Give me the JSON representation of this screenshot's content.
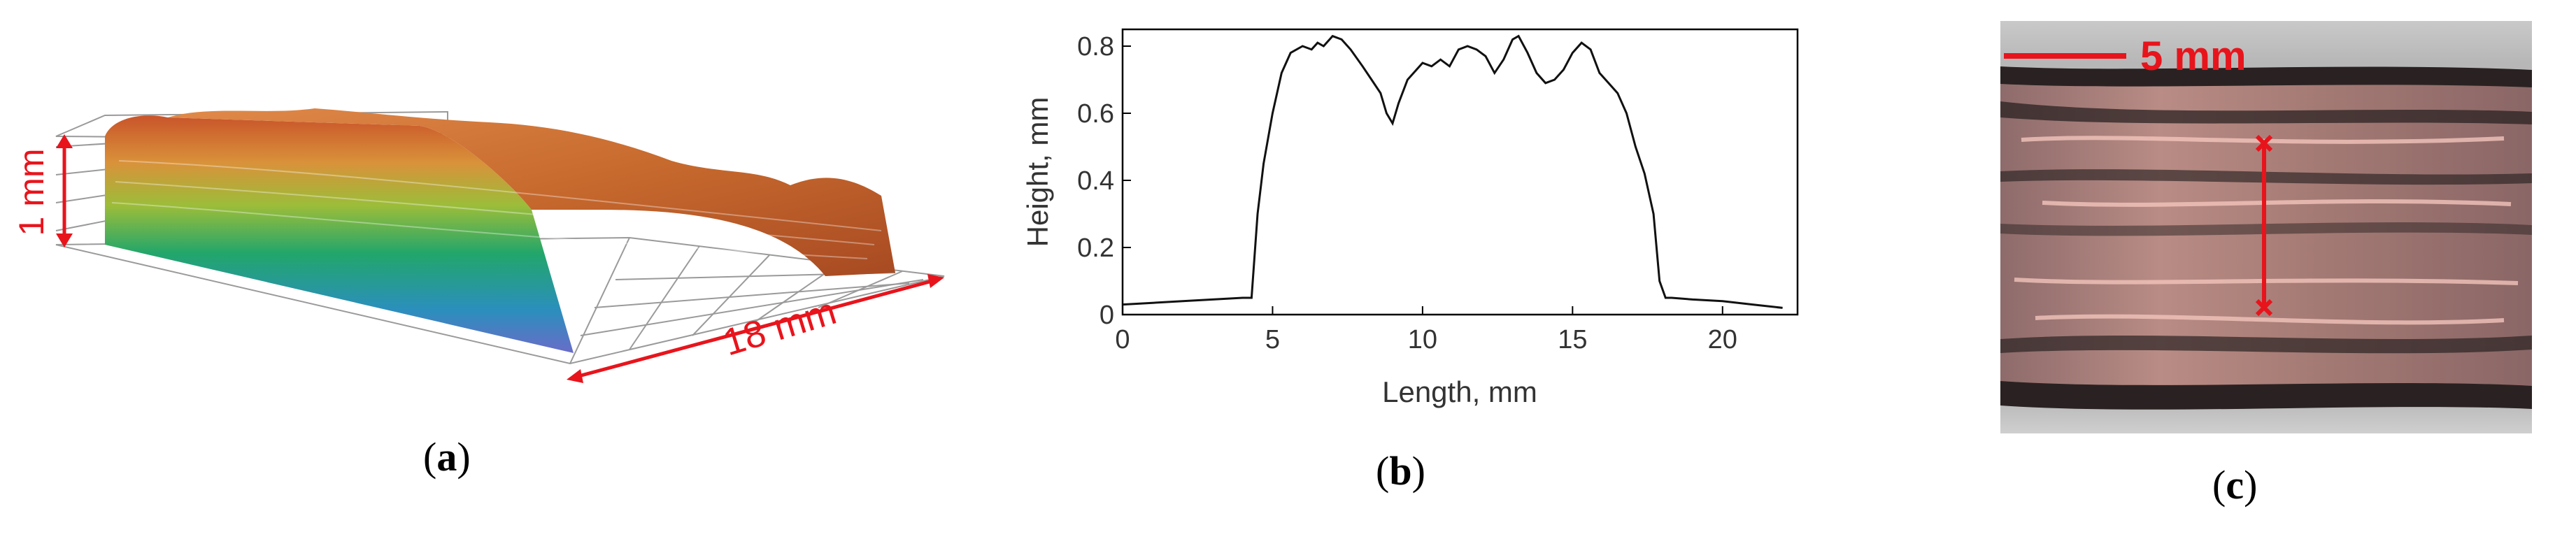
{
  "panels": [
    {
      "id": "a",
      "caption_letter": "a",
      "labels": {
        "height": "1 mm",
        "length": "18 mm"
      }
    },
    {
      "id": "b",
      "caption_letter": "b"
    },
    {
      "id": "c",
      "caption_letter": "c",
      "labels": {
        "scale": "5 mm"
      }
    }
  ],
  "colors": {
    "annotation_red": "#e8141c",
    "line": "#111111"
  },
  "chart_data": {
    "type": "line",
    "xlabel": "Length, mm",
    "ylabel": "Height, mm",
    "xlim": [
      0,
      22.5
    ],
    "ylim": [
      0,
      0.85
    ],
    "xticks": [
      0,
      5,
      10,
      15,
      20
    ],
    "yticks": [
      0,
      0.2,
      0.4,
      0.6,
      0.8
    ],
    "grid": false,
    "series": [
      {
        "x": [
          0,
          1,
          2,
          3,
          4,
          4.3,
          4.5,
          4.7,
          5,
          5.3,
          5.6,
          6,
          6.3,
          6.5,
          6.7,
          7,
          7.3,
          7.6,
          8,
          8.3,
          8.6,
          8.8,
          9,
          9.2,
          9.5,
          9.8,
          10,
          10.3,
          10.6,
          10.9,
          11.2,
          11.5,
          11.8,
          12.1,
          12.4,
          12.7,
          13,
          13.2,
          13.5,
          13.8,
          14.1,
          14.4,
          14.7,
          15,
          15.3,
          15.6,
          15.9,
          16.2,
          16.5,
          16.8,
          17.1,
          17.4,
          17.7,
          17.9,
          18.1,
          18.3,
          19,
          20,
          21,
          22
        ],
        "y": [
          0.03,
          0.035,
          0.04,
          0.045,
          0.05,
          0.05,
          0.3,
          0.45,
          0.6,
          0.72,
          0.78,
          0.8,
          0.79,
          0.81,
          0.8,
          0.83,
          0.82,
          0.79,
          0.74,
          0.7,
          0.66,
          0.6,
          0.57,
          0.63,
          0.7,
          0.73,
          0.75,
          0.74,
          0.76,
          0.74,
          0.79,
          0.8,
          0.79,
          0.77,
          0.72,
          0.76,
          0.82,
          0.83,
          0.78,
          0.72,
          0.69,
          0.7,
          0.73,
          0.78,
          0.81,
          0.79,
          0.72,
          0.69,
          0.66,
          0.6,
          0.5,
          0.42,
          0.3,
          0.1,
          0.05,
          0.05,
          0.045,
          0.04,
          0.03,
          0.02
        ]
      }
    ]
  }
}
